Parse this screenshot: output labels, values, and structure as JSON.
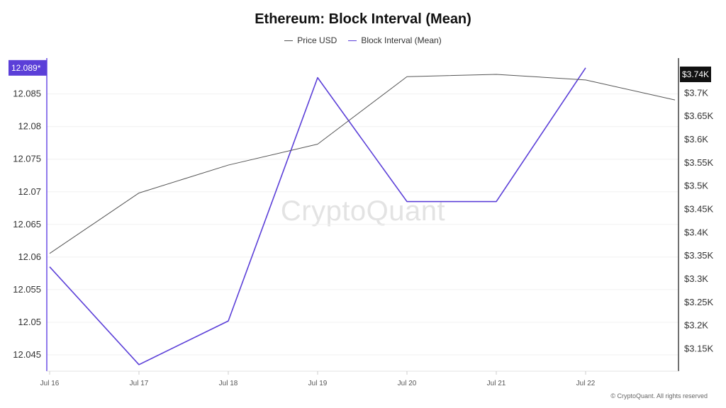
{
  "title": "Ethereum: Block Interval (Mean)",
  "legend": [
    {
      "label": "Price USD",
      "color": "#555555"
    },
    {
      "label": "Block Interval (Mean)",
      "color": "#5b3fd8"
    }
  ],
  "watermark": "CryptoQuant",
  "copyright": "© CryptoQuant. All rights reserved",
  "chart_data": {
    "type": "line",
    "title": "Ethereum: Block Interval (Mean)",
    "categories": [
      "Jul 16",
      "Jul 17",
      "Jul 18",
      "Jul 19",
      "Jul 20",
      "Jul 21",
      "Jul 22"
    ],
    "x": [
      0,
      1,
      2,
      3,
      4,
      5,
      6,
      7
    ],
    "series": [
      {
        "name": "Block Interval (Mean)",
        "axis": "left",
        "color": "#5b3fd8",
        "values": [
          12.0585,
          12.0435,
          12.0502,
          12.0875,
          12.0685,
          12.0685,
          12.089
        ]
      },
      {
        "name": "Price USD",
        "axis": "right",
        "color": "#555555",
        "values": [
          3355,
          3485,
          3545,
          3590,
          3735,
          3740,
          3728,
          3685
        ]
      }
    ],
    "left_axis": {
      "ticks": [
        "12.045",
        "12.05",
        "12.055",
        "12.06",
        "12.065",
        "12.07",
        "12.075",
        "12.08",
        "12.085"
      ],
      "tick_values": [
        12.045,
        12.05,
        12.055,
        12.06,
        12.065,
        12.07,
        12.075,
        12.08,
        12.085
      ],
      "ylim": [
        12.0425,
        12.0905
      ]
    },
    "right_axis": {
      "ticks": [
        "$3.15K",
        "$3.2K",
        "$3.25K",
        "$3.3K",
        "$3.35K",
        "$3.4K",
        "$3.45K",
        "$3.5K",
        "$3.55K",
        "$3.6K",
        "$3.65K",
        "$3.7K"
      ],
      "tick_values": [
        3150,
        3200,
        3250,
        3300,
        3350,
        3400,
        3450,
        3500,
        3550,
        3600,
        3650,
        3700
      ],
      "ylim": [
        3102,
        3775
      ]
    },
    "left_badge": {
      "label": "12.089*",
      "value": 12.089,
      "color": "#5b3fd8"
    },
    "right_badge": {
      "label": "$3.74K",
      "value": 3740,
      "color": "#111111"
    }
  }
}
